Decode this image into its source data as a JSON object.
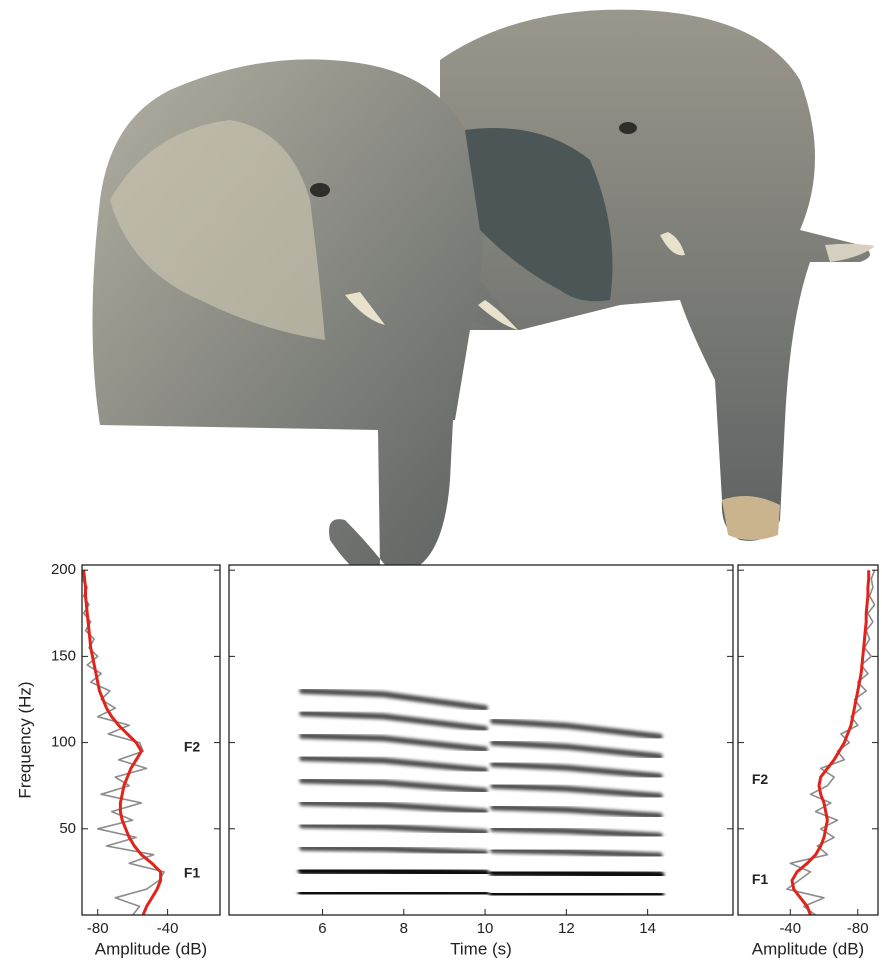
{
  "chart_data": [
    {
      "type": "spectrum",
      "ylabel": "Frequency (Hz)",
      "xlabel": "Amplitude (dB)",
      "ylim": [
        0,
        203
      ],
      "yticks": [
        50,
        100,
        150,
        200
      ],
      "xlim": [
        -89,
        -10
      ],
      "xticks": [
        -80,
        -40
      ],
      "y": [
        0,
        5,
        10,
        15,
        20,
        25,
        30,
        35,
        40,
        45,
        50,
        55,
        60,
        65,
        70,
        75,
        80,
        85,
        90,
        95,
        100,
        105,
        110,
        115,
        120,
        125,
        130,
        135,
        140,
        145,
        150,
        155,
        160,
        165,
        170,
        175,
        180,
        185,
        190,
        195,
        200
      ],
      "series": [
        {
          "color": "#8c8c8c",
          "values": [
            -60,
            -56,
            -70,
            -52,
            -45,
            -42,
            -62,
            -48,
            -75,
            -58,
            -80,
            -60,
            -72,
            -55,
            -78,
            -62,
            -70,
            -52,
            -68,
            -54,
            -56,
            -74,
            -62,
            -80,
            -70,
            -78,
            -73,
            -84,
            -78,
            -86,
            -80,
            -85,
            -82,
            -87,
            -84,
            -88,
            -85,
            -88,
            -86,
            -89,
            -88
          ]
        },
        {
          "color": "#e0241b",
          "values": [
            -54,
            -52,
            -49,
            -46,
            -44,
            -44,
            -49,
            -55,
            -59,
            -62,
            -64,
            -66,
            -67,
            -67,
            -66,
            -65,
            -63,
            -61,
            -58,
            -55,
            -58,
            -63,
            -68,
            -72,
            -75,
            -77,
            -79,
            -80,
            -81,
            -82,
            -83,
            -84,
            -84.5,
            -85,
            -85.5,
            -86,
            -86.5,
            -87,
            -87,
            -87.5,
            -88
          ]
        }
      ],
      "annotations": [
        {
          "text": "F2",
          "y": 97
        },
        {
          "text": "F1",
          "y": 24
        }
      ]
    },
    {
      "type": "spectrogram",
      "xlabel": "Time (s)",
      "ylim": [
        0,
        203
      ],
      "yticks": [
        50,
        100,
        150,
        200
      ],
      "xlim": [
        3.7,
        16.1
      ],
      "xticks": [
        6,
        8,
        10,
        12,
        14
      ],
      "contours": [
        {
          "x": [
            5.5,
            7.5,
            10
          ],
          "values": [
            13,
            12.8,
            12
          ]
        },
        {
          "x": [
            5.5,
            7.5,
            10
          ],
          "values": [
            26,
            25.6,
            24
          ]
        },
        {
          "x": [
            5.5,
            7.5,
            10
          ],
          "values": [
            39,
            38.4,
            36
          ]
        },
        {
          "x": [
            5.5,
            7.5,
            10
          ],
          "values": [
            52,
            51.2,
            48
          ]
        },
        {
          "x": [
            5.5,
            7.5,
            10
          ],
          "values": [
            65,
            64,
            60
          ]
        },
        {
          "x": [
            5.5,
            7.5,
            10
          ],
          "values": [
            78,
            76.8,
            72
          ]
        },
        {
          "x": [
            5.5,
            7.5,
            10
          ],
          "values": [
            91,
            89.6,
            84
          ]
        },
        {
          "x": [
            5.5,
            7.5,
            10
          ],
          "values": [
            104,
            102.4,
            96
          ]
        },
        {
          "x": [
            5.5,
            7.5,
            10
          ],
          "values": [
            117,
            115.2,
            108
          ]
        },
        {
          "x": [
            5.5,
            7.5,
            10
          ],
          "values": [
            130,
            128,
            120
          ]
        },
        {
          "x": [
            10.2,
            12,
            14.3
          ],
          "values": [
            12.5,
            12.2,
            11.5
          ]
        },
        {
          "x": [
            10.2,
            12,
            14.3
          ],
          "values": [
            25,
            24.4,
            23
          ]
        },
        {
          "x": [
            10.2,
            12,
            14.3
          ],
          "values": [
            37.5,
            36.6,
            34.5
          ]
        },
        {
          "x": [
            10.2,
            12,
            14.3
          ],
          "values": [
            50,
            48.8,
            46
          ]
        },
        {
          "x": [
            10.2,
            12,
            14.3
          ],
          "values": [
            62.5,
            61,
            57.5
          ]
        },
        {
          "x": [
            10.2,
            12,
            14.3
          ],
          "values": [
            75,
            73.2,
            69
          ]
        },
        {
          "x": [
            10.2,
            12,
            14.3
          ],
          "values": [
            87.5,
            85.4,
            80.5
          ]
        },
        {
          "x": [
            10.2,
            12,
            14.3
          ],
          "values": [
            100,
            97.6,
            92
          ]
        },
        {
          "x": [
            10.2,
            12,
            14.3
          ],
          "values": [
            112.5,
            109.8,
            103.5
          ]
        }
      ]
    },
    {
      "type": "spectrum",
      "xlabel": "Amplitude (dB)",
      "ylim": [
        0,
        203
      ],
      "yticks": [
        50,
        100,
        150,
        200
      ],
      "xlim": [
        -9,
        -92
      ],
      "xticks": [
        -40,
        -80
      ],
      "y": [
        0,
        5,
        10,
        15,
        20,
        25,
        30,
        35,
        40,
        45,
        50,
        55,
        60,
        65,
        70,
        75,
        80,
        85,
        90,
        95,
        100,
        105,
        110,
        115,
        120,
        125,
        130,
        135,
        140,
        145,
        150,
        155,
        160,
        165,
        170,
        175,
        180,
        185,
        190,
        195,
        200
      ],
      "series": [
        {
          "color": "#8c8c8c",
          "values": [
            -55,
            -48,
            -60,
            -38,
            -45,
            -52,
            -40,
            -62,
            -56,
            -66,
            -58,
            -68,
            -55,
            -64,
            -52,
            -62,
            -66,
            -58,
            -72,
            -68,
            -75,
            -70,
            -80,
            -76,
            -82,
            -78,
            -85,
            -80,
            -86,
            -82,
            -88,
            -84,
            -87,
            -85,
            -89,
            -86,
            -90,
            -87,
            -89,
            -88,
            -90
          ]
        },
        {
          "color": "#e0241b",
          "values": [
            -52,
            -50,
            -46,
            -42,
            -41,
            -44,
            -50,
            -55,
            -58,
            -60,
            -61,
            -62,
            -61,
            -60,
            -58,
            -57,
            -58,
            -62,
            -66,
            -69,
            -72,
            -74,
            -76,
            -77,
            -78,
            -79,
            -80,
            -81,
            -82,
            -82.5,
            -83,
            -83.5,
            -84,
            -84.5,
            -85,
            -85,
            -85.5,
            -86,
            -86,
            -86.5,
            -86.5
          ]
        }
      ],
      "annotations": [
        {
          "text": "F2",
          "y": 78
        },
        {
          "text": "F1",
          "y": 20
        }
      ]
    }
  ]
}
